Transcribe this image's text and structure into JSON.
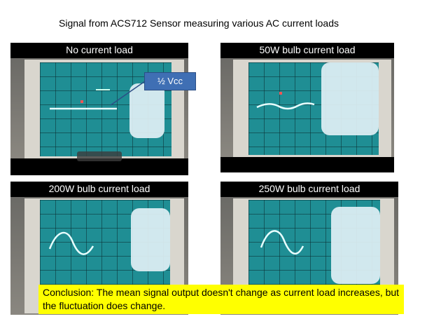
{
  "title": "Signal from ACS712 Sensor measuring various AC current loads",
  "panels": [
    {
      "label": "No current load",
      "amplitude": "none"
    },
    {
      "label": "50W bulb current load",
      "amplitude": "small"
    },
    {
      "label": "200W bulb current load",
      "amplitude": "large"
    },
    {
      "label": "250W bulb current load",
      "amplitude": "large"
    }
  ],
  "callout": "½ Vcc",
  "conclusion": "Conclusion: The mean signal output doesn't change as current load increases, but the fluctuation does change.",
  "colors": {
    "trace": "#e8ffff",
    "screen": "#1f8e94",
    "callout": "#3f6fb4",
    "highlight": "#ffff00"
  }
}
